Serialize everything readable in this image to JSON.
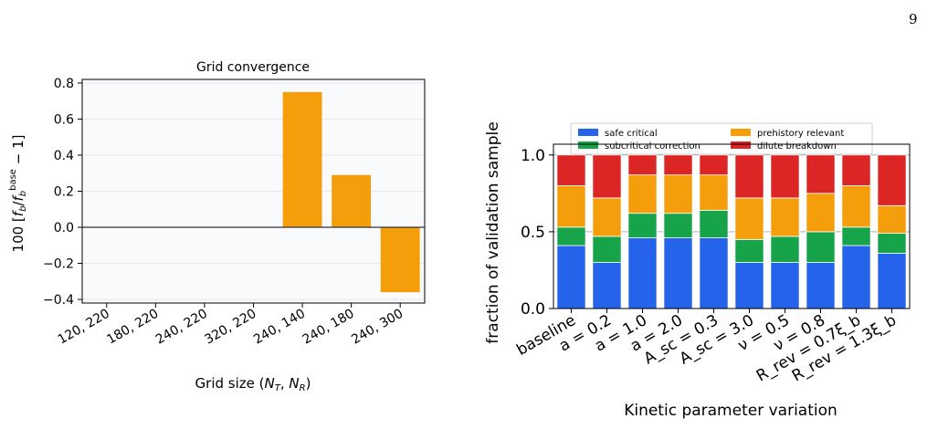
{
  "page_number": "9",
  "chart_data": [
    {
      "type": "bar",
      "title": "Grid convergence",
      "xlabel": "Grid size (N_T, N_R)",
      "ylabel": "100 [f_b / f_b^base − 1]",
      "categories": [
        "120, 220",
        "180, 220",
        "240, 220",
        "320, 220",
        "240, 140",
        "240, 180",
        "240, 300"
      ],
      "values": [
        0,
        0,
        0,
        0,
        0.75,
        0.29,
        -0.36
      ],
      "ylim": [
        -0.42,
        0.82
      ],
      "yticks": [
        0.8,
        0.6,
        0.4,
        0.2,
        0.0,
        -0.2,
        -0.4
      ],
      "ytick_labels": [
        "0.8",
        "0.6",
        "0.4",
        "0.2",
        "0.0",
        "−0.2",
        "−0.4"
      ],
      "grid": true,
      "colors": {
        "bar": "#f59e0b",
        "background": "#f8fafc",
        "zero_line": "#333333"
      }
    },
    {
      "type": "bar",
      "stacked": true,
      "title": "",
      "xlabel": "Kinetic parameter variation",
      "ylabel": "fraction of validation sample",
      "categories": [
        "baseline",
        "a = 0.2",
        "a = 1.0",
        "a = 2.0",
        "A_sc = 0.3",
        "A_sc = 3.0",
        "ν = 0.5",
        "ν = 0.8",
        "R_rev = 0.7ξ_b",
        "R_rev = 1.3ξ_b"
      ],
      "series": [
        {
          "name": "safe critical",
          "color": "#2563eb",
          "values": [
            0.41,
            0.3,
            0.46,
            0.46,
            0.46,
            0.3,
            0.3,
            0.3,
            0.41,
            0.36
          ]
        },
        {
          "name": "subcritical correction",
          "color": "#16a34a",
          "values": [
            0.12,
            0.17,
            0.16,
            0.16,
            0.18,
            0.15,
            0.17,
            0.2,
            0.12,
            0.13
          ]
        },
        {
          "name": "prehistory relevant",
          "color": "#f59e0b",
          "values": [
            0.27,
            0.25,
            0.25,
            0.25,
            0.23,
            0.27,
            0.25,
            0.25,
            0.27,
            0.18
          ]
        },
        {
          "name": "dilute breakdown",
          "color": "#dc2626",
          "values": [
            0.2,
            0.28,
            0.13,
            0.13,
            0.13,
            0.28,
            0.28,
            0.25,
            0.2,
            0.33
          ]
        }
      ],
      "ylim": [
        0,
        1.07
      ],
      "yticks": [
        0.0,
        0.5,
        1.0
      ],
      "ytick_labels": [
        "0.0",
        "0.5",
        "1.0"
      ],
      "grid": true,
      "legend_position": "top"
    }
  ]
}
